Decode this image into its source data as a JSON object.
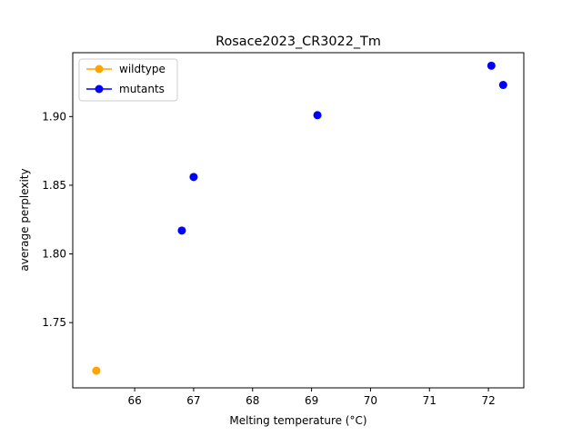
{
  "chart_data": {
    "type": "scatter",
    "title": "Rosace2023_CR3022_Tm",
    "xlabel": "Melting temperature (°C)",
    "ylabel": "average perplexity",
    "xlim": [
      64.95,
      72.6
    ],
    "ylim": [
      1.7025,
      1.9465
    ],
    "xticks": [
      66,
      67,
      68,
      69,
      70,
      71,
      72
    ],
    "yticks": [
      1.75,
      1.8,
      1.85,
      1.9
    ],
    "legend_position": "upper-left",
    "grid": false,
    "series": [
      {
        "name": "wildtype",
        "color": "#FFA500",
        "points": [
          {
            "x": 65.35,
            "y": 1.715
          }
        ]
      },
      {
        "name": "mutants",
        "color": "#0000FF",
        "points": [
          {
            "x": 66.8,
            "y": 1.817
          },
          {
            "x": 67.0,
            "y": 1.856
          },
          {
            "x": 69.1,
            "y": 1.901
          },
          {
            "x": 72.05,
            "y": 1.937
          },
          {
            "x": 72.25,
            "y": 1.923
          }
        ]
      }
    ]
  }
}
